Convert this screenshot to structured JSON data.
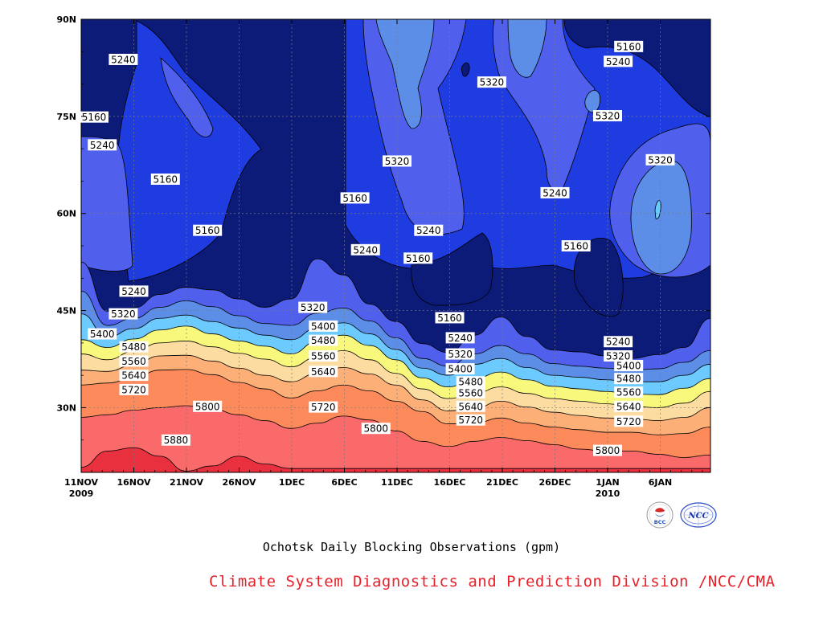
{
  "chart_data": {
    "type": "heatmap",
    "subtype": "filled-contour (time-latitude Hovmoller)",
    "title": "",
    "xlabel": "",
    "ylabel": "",
    "x_ticks": [
      {
        "line1": "11NOV",
        "line2": "2009"
      },
      {
        "line1": "16NOV",
        "line2": ""
      },
      {
        "line1": "21NOV",
        "line2": ""
      },
      {
        "line1": "26NOV",
        "line2": ""
      },
      {
        "line1": "1DEC",
        "line2": ""
      },
      {
        "line1": "6DEC",
        "line2": ""
      },
      {
        "line1": "11DEC",
        "line2": ""
      },
      {
        "line1": "16DEC",
        "line2": ""
      },
      {
        "line1": "21DEC",
        "line2": ""
      },
      {
        "line1": "26DEC",
        "line2": ""
      },
      {
        "line1": "1JAN",
        "line2": "2010"
      },
      {
        "line1": "6JAN",
        "line2": ""
      }
    ],
    "y_ticks": [
      "30N",
      "45N",
      "60N",
      "75N",
      "90N"
    ],
    "x_range": [
      "2009-11-11",
      "2010-01-10"
    ],
    "y_range_deg": [
      20,
      90
    ],
    "grid": true,
    "contour_interval_gpm": 80,
    "levels": [
      5160,
      5240,
      5320,
      5400,
      5480,
      5560,
      5640,
      5720,
      5800,
      5880
    ],
    "colors": [
      "#0c1a78",
      "#1e3ce0",
      "#5060ec",
      "#5c8ee8",
      "#6ccaff",
      "#f8f87c",
      "#fcdca0",
      "#fcb078",
      "#fc8a5a",
      "#fa6a6a",
      "#e8303e"
    ],
    "band_boundaries": [
      {
        "level": 5880,
        "lat": [
          20.8,
          23.3,
          23.8,
          22.5,
          20.2,
          21.0,
          22.5,
          21.3,
          20.6,
          20.6,
          20.6,
          20.6,
          20.6,
          20.6,
          20.6,
          20.6,
          20.6,
          20.6,
          20.6,
          20.6,
          20.6,
          20.6,
          20.6,
          20.6,
          20.6
        ]
      },
      {
        "level": 5800,
        "lat": [
          28.5,
          28.9,
          29.6,
          30.0,
          30.3,
          29.8,
          28.9,
          28.0,
          26.8,
          27.6,
          28.7,
          28.1,
          26.4,
          24.8,
          24.0,
          24.8,
          25.4,
          24.9,
          24.3,
          23.6,
          23.3,
          23.3,
          22.8,
          22.3,
          22.7
        ]
      },
      {
        "level": 5720,
        "lat": [
          33.5,
          33.8,
          34.6,
          35.8,
          35.9,
          35.1,
          33.9,
          32.9,
          31.5,
          32.6,
          33.5,
          32.6,
          31.0,
          29.4,
          27.5,
          27.6,
          28.4,
          27.6,
          27.0,
          26.6,
          26.2,
          26.2,
          25.8,
          26.0,
          27.0
        ]
      },
      {
        "level": 5640,
        "lat": [
          35.8,
          35.6,
          36.6,
          38.0,
          38.1,
          37.2,
          36.1,
          35.0,
          34.0,
          35.3,
          36.2,
          35.2,
          33.5,
          31.2,
          29.5,
          29.9,
          31.0,
          30.1,
          29.3,
          28.8,
          28.4,
          28.3,
          28.0,
          28.5,
          30.0
        ]
      },
      {
        "level": 5560,
        "lat": [
          38.3,
          37.4,
          38.7,
          40.0,
          40.3,
          39.4,
          38.4,
          37.5,
          36.3,
          37.8,
          38.8,
          37.4,
          35.3,
          32.9,
          31.4,
          32.2,
          33.2,
          32.2,
          31.4,
          31.0,
          30.6,
          30.2,
          30.0,
          30.7,
          32.5
        ]
      },
      {
        "level": 5480,
        "lat": [
          40.5,
          39.3,
          40.6,
          42.0,
          42.6,
          41.4,
          40.3,
          39.5,
          38.3,
          40.2,
          41.2,
          39.6,
          37.4,
          34.6,
          33.2,
          34.5,
          35.5,
          34.3,
          33.3,
          32.9,
          32.5,
          32.1,
          32.0,
          33.0,
          34.5
        ]
      },
      {
        "level": 5400,
        "lat": [
          44.5,
          40.9,
          42.2,
          43.8,
          44.3,
          43.3,
          42.3,
          41.2,
          40.5,
          42.3,
          43.1,
          41.4,
          39.0,
          36.1,
          35.0,
          36.7,
          37.6,
          36.2,
          35.0,
          34.7,
          34.3,
          34.0,
          34.0,
          35.0,
          36.7
        ]
      },
      {
        "level": 5320,
        "lat": [
          48.0,
          42.7,
          43.8,
          45.5,
          46.5,
          45.6,
          44.2,
          43.0,
          42.7,
          44.6,
          45.4,
          43.4,
          40.8,
          37.6,
          36.4,
          38.3,
          39.6,
          38.3,
          36.8,
          36.4,
          36.1,
          35.8,
          36.0,
          37.0,
          38.8
        ]
      },
      {
        "level": 5240,
        "lat": [
          52.5,
          44.9,
          45.4,
          47.5,
          48.6,
          48.2,
          46.8,
          45.5,
          46.8,
          53.0,
          50.5,
          46.0,
          43.3,
          39.9,
          38.5,
          41.2,
          44.0,
          41.0,
          38.9,
          38.6,
          38.0,
          37.6,
          38.2,
          39.3,
          43.8
        ]
      }
    ],
    "contour_labels": [
      {
        "text": "5240",
        "x": "2009-11-15",
        "y": 83.8
      },
      {
        "text": "5160",
        "x": "2009-11-11",
        "y": 74.9
      },
      {
        "text": "5240",
        "x": "2009-11-13",
        "y": 70.6
      },
      {
        "text": "5160",
        "x": "2009-11-19",
        "y": 65.3
      },
      {
        "text": "5160",
        "x": "2009-11-23",
        "y": 57.4
      },
      {
        "text": "5160",
        "x": "2009-12-07",
        "y": 62.4
      },
      {
        "text": "5240",
        "x": "2009-12-08",
        "y": 54.4
      },
      {
        "text": "5320",
        "x": "2009-12-11",
        "y": 68.1
      },
      {
        "text": "5240",
        "x": "2009-12-14",
        "y": 57.4
      },
      {
        "text": "5160",
        "x": "2009-12-13",
        "y": 53.1
      },
      {
        "text": "5320",
        "x": "2009-12-20",
        "y": 80.3
      },
      {
        "text": "5160",
        "x": "2010-01-02",
        "y": 85.8
      },
      {
        "text": "5240",
        "x": "2010-01-01",
        "y": 83.5
      },
      {
        "text": "5320",
        "x": "2009-12-31",
        "y": 75.1
      },
      {
        "text": "5240",
        "x": "2009-12-26",
        "y": 63.2
      },
      {
        "text": "5160",
        "x": "2009-12-28",
        "y": 55.0
      },
      {
        "text": "5320",
        "x": "2010-01-05",
        "y": 68.3
      },
      {
        "text": "5240",
        "x": "2009-11-16",
        "y": 48.0
      },
      {
        "text": "5320",
        "x": "2009-11-15",
        "y": 44.5
      },
      {
        "text": "5400",
        "x": "2009-11-13",
        "y": 41.4
      },
      {
        "text": "5480",
        "x": "2009-11-16",
        "y": 39.4
      },
      {
        "text": "5560",
        "x": "2009-11-16",
        "y": 37.2
      },
      {
        "text": "5640",
        "x": "2009-11-16",
        "y": 35.0
      },
      {
        "text": "5720",
        "x": "2009-11-16",
        "y": 32.8
      },
      {
        "text": "5800",
        "x": "2009-11-23",
        "y": 30.2
      },
      {
        "text": "5880",
        "x": "2009-11-20",
        "y": 25.0
      },
      {
        "text": "5320",
        "x": "2009-12-03",
        "y": 45.5
      },
      {
        "text": "5400",
        "x": "2009-12-04",
        "y": 42.6
      },
      {
        "text": "5480",
        "x": "2009-12-04",
        "y": 40.4
      },
      {
        "text": "5560",
        "x": "2009-12-04",
        "y": 38.0
      },
      {
        "text": "5640",
        "x": "2009-12-04",
        "y": 35.6
      },
      {
        "text": "5720",
        "x": "2009-12-04",
        "y": 30.1
      },
      {
        "text": "5800",
        "x": "2009-12-09",
        "y": 26.8
      },
      {
        "text": "5160",
        "x": "2009-12-16",
        "y": 43.9
      },
      {
        "text": "5240",
        "x": "2009-12-17",
        "y": 40.8
      },
      {
        "text": "5320",
        "x": "2009-12-17",
        "y": 38.3
      },
      {
        "text": "5400",
        "x": "2009-12-17",
        "y": 36.0
      },
      {
        "text": "5480",
        "x": "2009-12-18",
        "y": 34.0
      },
      {
        "text": "5560",
        "x": "2009-12-18",
        "y": 32.3
      },
      {
        "text": "5640",
        "x": "2009-12-18",
        "y": 30.2
      },
      {
        "text": "5720",
        "x": "2009-12-18",
        "y": 28.1
      },
      {
        "text": "5240",
        "x": "2010-01-01",
        "y": 40.2
      },
      {
        "text": "5320",
        "x": "2010-01-01",
        "y": 38.0
      },
      {
        "text": "5400",
        "x": "2010-01-02",
        "y": 36.5
      },
      {
        "text": "5480",
        "x": "2010-01-02",
        "y": 34.5
      },
      {
        "text": "5560",
        "x": "2010-01-02",
        "y": 32.4
      },
      {
        "text": "5640",
        "x": "2010-01-02",
        "y": 30.2
      },
      {
        "text": "5720",
        "x": "2010-01-02",
        "y": 27.9
      },
      {
        "text": "5800",
        "x": "2009-12-31",
        "y": 23.4
      }
    ]
  },
  "caption": "Ochotsk Daily Blocking Observations (gpm)",
  "credit": "Climate System Diagnostics and Prediction Division /NCC/CMA",
  "logos": {
    "left": {
      "icon": "bcc-logo-icon",
      "text": "BCC"
    },
    "right": {
      "icon": "ncc-logo-icon",
      "text": "NCC"
    }
  }
}
